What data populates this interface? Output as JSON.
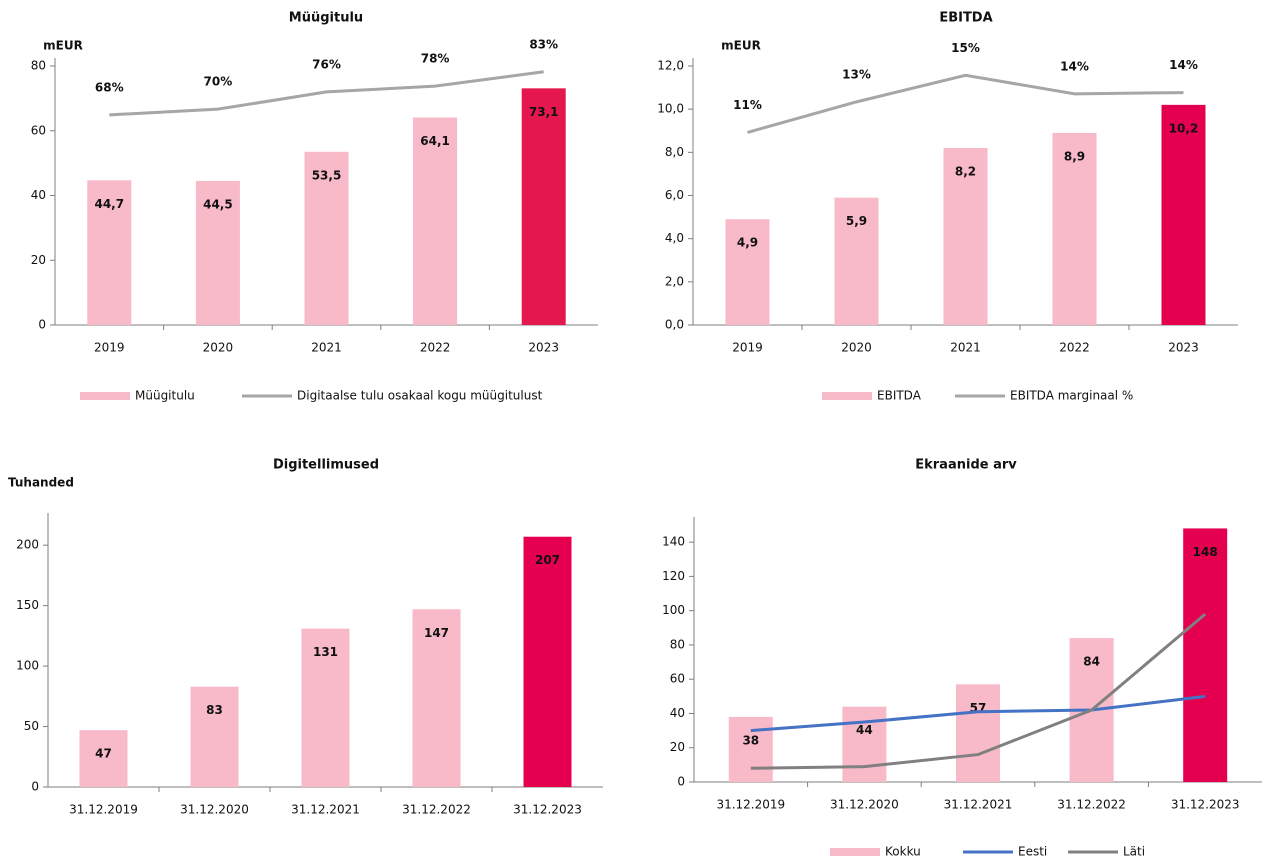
{
  "chart_data": [
    {
      "type": "bar",
      "title": "Müügitulu",
      "axis_label": "mEUR",
      "categories": [
        "2019",
        "2020",
        "2021",
        "2022",
        "2023"
      ],
      "ylim": [
        0,
        80
      ],
      "yticks": [
        0,
        20,
        40,
        60,
        80
      ],
      "y2lim": [
        -5,
        85
      ],
      "legend": "bottom",
      "series": [
        {
          "name": "Müügitulu",
          "type": "bar",
          "color": "#f8b9c9",
          "colors": [
            "#f8b9c9",
            "#f8b9c9",
            "#f8b9c9",
            "#f8b9c9",
            "#e5174f"
          ],
          "label_colors": [
            "#111111",
            "#111111",
            "#111111",
            "#111111",
            "#ffffff"
          ],
          "values": [
            44.7,
            44.5,
            53.5,
            64.1,
            73.1
          ],
          "value_labels": [
            "44,7",
            "44,5",
            "53,5",
            "64,1",
            "73,1"
          ]
        },
        {
          "name": "Digitaalse tulu osakaal kogu müügitulust",
          "type": "line",
          "axis": "y2",
          "color": "#a6a6a6",
          "values": [
            68,
            70,
            76,
            78,
            83
          ],
          "value_labels": [
            "68%",
            "70%",
            "76%",
            "78%",
            "83%"
          ]
        }
      ]
    },
    {
      "type": "bar",
      "title": "EBITDA",
      "axis_label": "mEUR",
      "categories": [
        "2019",
        "2020",
        "2021",
        "2022",
        "2023"
      ],
      "ylim": [
        0,
        12
      ],
      "yticks": [
        {
          "value": 0,
          "label": "0,0"
        },
        {
          "value": 2,
          "label": "2,0"
        },
        {
          "value": 4,
          "label": "4,0"
        },
        {
          "value": 6,
          "label": "6,0"
        },
        {
          "value": 8,
          "label": "8,0"
        },
        {
          "value": 10,
          "label": "10,0"
        },
        {
          "value": 12,
          "label": "12,0"
        }
      ],
      "y2lim": [
        -3.5,
        16
      ],
      "legend": "bottom",
      "series": [
        {
          "name": "EBITDA",
          "type": "bar",
          "color": "#f8b9c9",
          "colors": [
            "#f8b9c9",
            "#f8b9c9",
            "#f8b9c9",
            "#f8b9c9",
            "#e5004f"
          ],
          "label_colors": [
            "#111111",
            "#111111",
            "#111111",
            "#111111",
            "#ffffff"
          ],
          "values": [
            4.9,
            5.9,
            8.2,
            8.9,
            10.2
          ],
          "value_labels": [
            "4,9",
            "5,9",
            "8,2",
            "8,9",
            "10,2"
          ]
        },
        {
          "name": "EBITDA marginaal %",
          "type": "line",
          "axis": "y2",
          "color": "#a6a6a6",
          "values": [
            11.0,
            13.3,
            15.3,
            13.9,
            14.0
          ],
          "value_labels": [
            "11%",
            "13%",
            "15%",
            "14%",
            "14%"
          ]
        }
      ]
    },
    {
      "type": "bar",
      "title": "Digitellimused",
      "axis_label": "Tuhanded",
      "categories": [
        "31.12.2019",
        "31.12.2020",
        "31.12.2021",
        "31.12.2022",
        "31.12.2023"
      ],
      "ylim": [
        0,
        220
      ],
      "yticks": [
        0,
        50,
        100,
        150,
        200
      ],
      "series": [
        {
          "type": "bar",
          "color": "#f8b9c9",
          "colors": [
            "#f8b9c9",
            "#f8b9c9",
            "#f8b9c9",
            "#f8b9c9",
            "#e5004f"
          ],
          "label_colors": [
            "#444444",
            "#444444",
            "#444444",
            "#222222",
            "#ffffff"
          ],
          "values": [
            47,
            83,
            131,
            147,
            207
          ]
        }
      ]
    },
    {
      "type": "bar",
      "title": "Ekraanide arv",
      "categories": [
        "31.12.2019",
        "31.12.2020",
        "31.12.2021",
        "31.12.2022",
        "31.12.2023"
      ],
      "ylim": [
        0,
        150
      ],
      "yticks": [
        0,
        20,
        40,
        60,
        80,
        100,
        120,
        140
      ],
      "legend": "bottom",
      "series": [
        {
          "name": "Kokku",
          "type": "bar",
          "color": "#f8b9c9",
          "colors": [
            "#f8b9c9",
            "#f8b9c9",
            "#f8b9c9",
            "#f8b9c9",
            "#e5004f"
          ],
          "label_colors": [
            "#222222",
            "#222222",
            "#222222",
            "#222222",
            "#ffffff"
          ],
          "values": [
            38,
            44,
            57,
            84,
            148
          ]
        },
        {
          "name": "Eesti",
          "type": "line",
          "color": "#4472c4",
          "values": [
            30,
            35,
            41,
            42,
            50
          ]
        },
        {
          "name": "Läti",
          "type": "line",
          "color": "#808080",
          "values": [
            8,
            9,
            16,
            42,
            98
          ]
        }
      ]
    }
  ]
}
